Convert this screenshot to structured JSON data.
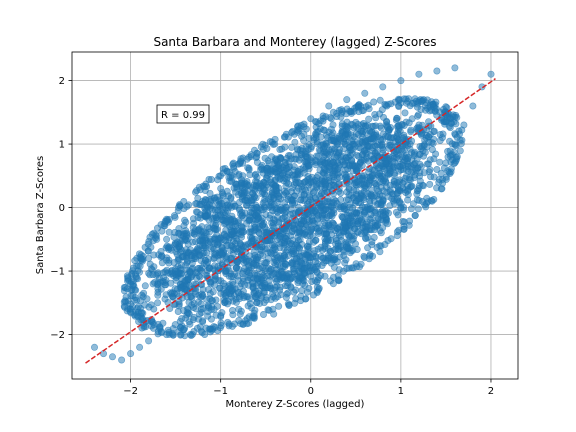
{
  "chart_data": {
    "type": "scatter",
    "title": "Santa Barbara and Monterey (lagged) Z-Scores",
    "xlabel": "Monterey Z-Scores (lagged)",
    "ylabel": "Santa Barbara Z-Scores",
    "xlim": [
      -2.65,
      2.3
    ],
    "ylim": [
      -2.7,
      2.45
    ],
    "xticks": [
      -2,
      -1,
      0,
      1,
      2
    ],
    "yticks": [
      -2,
      -1,
      0,
      1,
      2
    ],
    "grid": true,
    "annotation": "R = 0.99",
    "scatter_color": "#1f77b4",
    "fit_color": "#d62728",
    "fit_line": {
      "x": [
        -2.5,
        2.05
      ],
      "y": [
        -2.45,
        2.03
      ]
    },
    "points_hint": "dense elliptical cloud of ~thousands of points along y≈x",
    "sample_points": {
      "x": [
        -2.4,
        -2.3,
        -2.2,
        -2.1,
        -2.0,
        -1.9,
        -1.8,
        -1.6,
        -1.4,
        -1.2,
        -1.0,
        -0.8,
        -0.6,
        -0.4,
        -0.2,
        0.0,
        0.2,
        0.4,
        0.6,
        0.8,
        1.0,
        1.2,
        1.4,
        1.6,
        1.7,
        1.8,
        1.9,
        2.0,
        -2.0,
        -1.8,
        -1.6,
        -1.4,
        -1.2,
        -1.0,
        -0.8,
        -0.6,
        -0.4,
        -0.2,
        0.0,
        0.2,
        0.4,
        0.6,
        0.8,
        1.0,
        1.2,
        1.4,
        1.6,
        -1.7,
        -1.5,
        -1.2,
        -0.9,
        -0.6,
        -0.3,
        0.0,
        0.3,
        0.6,
        0.9,
        1.2,
        1.5
      ],
      "y": [
        -2.2,
        -2.3,
        -2.35,
        -2.4,
        -2.3,
        -2.2,
        -2.1,
        -2.0,
        -1.9,
        -1.8,
        -1.7,
        -1.6,
        -1.5,
        -1.3,
        -1.1,
        -1.0,
        -0.8,
        -0.6,
        -0.4,
        -0.2,
        0.0,
        0.3,
        0.6,
        1.0,
        1.3,
        1.6,
        1.9,
        2.1,
        -1.2,
        -0.8,
        -0.5,
        -0.2,
        0.1,
        0.3,
        0.5,
        0.8,
        1.0,
        1.2,
        1.4,
        1.6,
        1.7,
        1.8,
        1.9,
        2.0,
        2.1,
        2.15,
        2.2,
        -1.5,
        -1.0,
        -0.6,
        -0.3,
        0.0,
        0.2,
        0.3,
        0.6,
        0.9,
        1.1,
        1.3,
        1.5
      ]
    }
  }
}
